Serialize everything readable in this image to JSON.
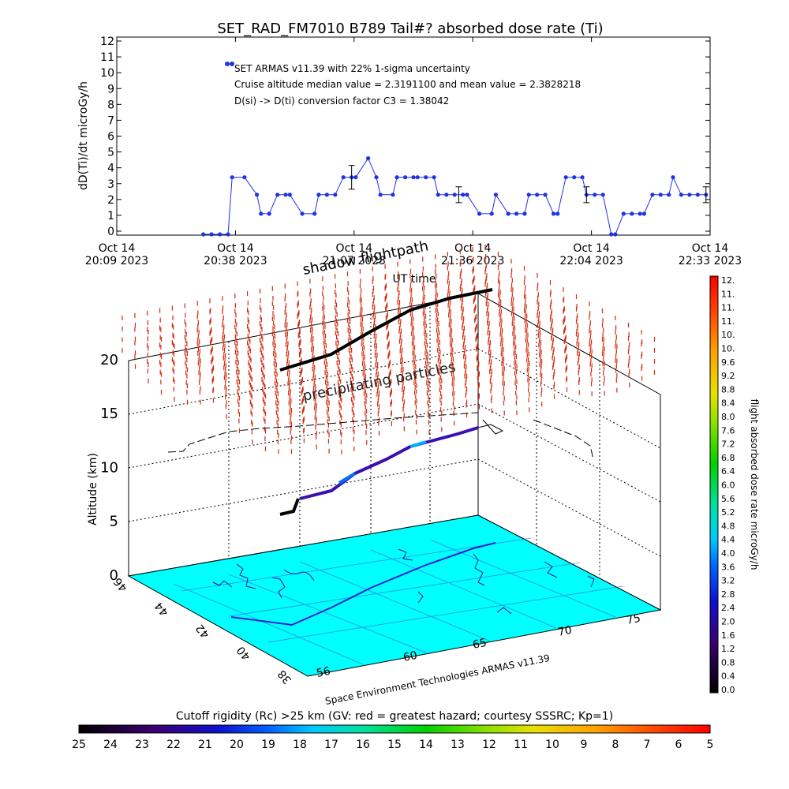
{
  "chart_data": [
    {
      "type": "scatter",
      "title": "SET_RAD_FM7010  B789 Tail#? absorbed dose rate (Ti)",
      "ylabel": "dD(Ti)/dt microGy/h",
      "xlabel": "UT time",
      "ylim": [
        0,
        12
      ],
      "yticks": [
        "0",
        "1",
        "2",
        "3",
        "4",
        "5",
        "6",
        "7",
        "8",
        "9",
        "10",
        "11",
        "12"
      ],
      "xticks": [
        {
          "top": "Oct 14",
          "bottom": "20:09 2023"
        },
        {
          "top": "Oct 14",
          "bottom": "20:38 2023"
        },
        {
          "top": "Oct 14",
          "bottom": "21:07 2023"
        },
        {
          "top": "Oct 14",
          "bottom": "21:36 2023"
        },
        {
          "top": "Oct 14",
          "bottom": "22:04 2023"
        },
        {
          "top": "Oct 14",
          "bottom": "22:33 2023"
        }
      ],
      "x_units": "minutes after Oct 14 20:09 2023 UT",
      "annotations": [
        "SET ARMAS v11.39 with 22% 1-sigma uncertainty",
        "Cruise altitude median value = 2.3191100 and mean value = 2.3828218",
        "D(si) -> D(ti) conversion factor C3 = 1.38042"
      ],
      "series": [
        {
          "color": "#1e32e6",
          "x": [
            21,
            23,
            25,
            27,
            28,
            31,
            34,
            35,
            37,
            39,
            41,
            42,
            45,
            48,
            49,
            51,
            53,
            55,
            57,
            58,
            61,
            63,
            64,
            67,
            68,
            70,
            72,
            73,
            75,
            77,
            78,
            80,
            82,
            84,
            85,
            88,
            91,
            92,
            95,
            97,
            99,
            100,
            102,
            104,
            106,
            107,
            109,
            111,
            113,
            114,
            116,
            118,
            120,
            121,
            123,
            125,
            127,
            128,
            130,
            132,
            134,
            135,
            137,
            139,
            141,
            143
          ],
          "y": [
            -0.2,
            -0.2,
            -0.2,
            -0.2,
            3.4,
            3.4,
            2.3,
            1.1,
            1.1,
            2.3,
            2.3,
            2.3,
            1.1,
            1.1,
            2.3,
            2.3,
            2.3,
            3.4,
            3.4,
            3.4,
            4.6,
            3.4,
            2.3,
            2.3,
            3.4,
            3.4,
            3.4,
            3.4,
            3.4,
            3.4,
            2.3,
            2.3,
            2.3,
            2.3,
            2.3,
            1.1,
            1.1,
            2.3,
            1.1,
            1.1,
            1.1,
            2.3,
            2.3,
            2.3,
            1.1,
            1.1,
            3.4,
            3.4,
            3.4,
            2.3,
            2.3,
            2.3,
            -0.2,
            -0.2,
            1.1,
            1.1,
            1.1,
            1.1,
            2.3,
            2.3,
            2.3,
            3.4,
            2.3,
            2.3,
            2.3,
            2.3
          ],
          "error_bars": [
            {
              "x": 57,
              "y": 3.4,
              "err": 0.75
            },
            {
              "x": 83,
              "y": 2.3,
              "err": 0.5
            },
            {
              "x": 114,
              "y": 2.3,
              "err": 0.5
            },
            {
              "x": 143,
              "y": 2.3,
              "err": 0.5
            }
          ]
        }
      ]
    },
    {
      "type": "3d-trajectory",
      "labels": {
        "shadow": "shadow flightpath",
        "precip": "precipitating particles",
        "credit": "Space Environment Technologies ARMAS v11.39"
      },
      "zlabel": "Altitude (km)",
      "zticks": [
        "0",
        "5",
        "10",
        "15",
        "20"
      ],
      "xticks": [
        "56",
        "60",
        "65",
        "70",
        "75"
      ],
      "yticks": [
        "38",
        "40",
        "42",
        "44",
        "46"
      ],
      "ground_color": "#00ffff",
      "flight_path_color_range": "dose rate 0.0 - 12.0"
    },
    {
      "type": "colorbar",
      "label": "flight absorbed dose rate microGy/h",
      "ticks": [
        "12.",
        "11.",
        "11.",
        "11.",
        "10.",
        "10.",
        "9.6",
        "9.2",
        "8.8",
        "8.4",
        "8.0",
        "7.6",
        "7.2",
        "6.8",
        "6.4",
        "6.0",
        "5.6",
        "5.2",
        "4.8",
        "4.4",
        "4.0",
        "3.6",
        "3.2",
        "2.8",
        "2.4",
        "2.0",
        "1.6",
        "1.2",
        "0.8",
        "0.4",
        "0.0"
      ]
    },
    {
      "type": "colorbar",
      "label": "Cutoff rigidity (Rc) >25 km (GV: red = greatest hazard; courtesy SSSRC; Kp=1)",
      "ticks": [
        "25",
        "24",
        "23",
        "22",
        "21",
        "20",
        "19",
        "18",
        "17",
        "16",
        "15",
        "14",
        "13",
        "12",
        "11",
        "10",
        "9",
        "8",
        "7",
        "6",
        "5"
      ]
    }
  ]
}
